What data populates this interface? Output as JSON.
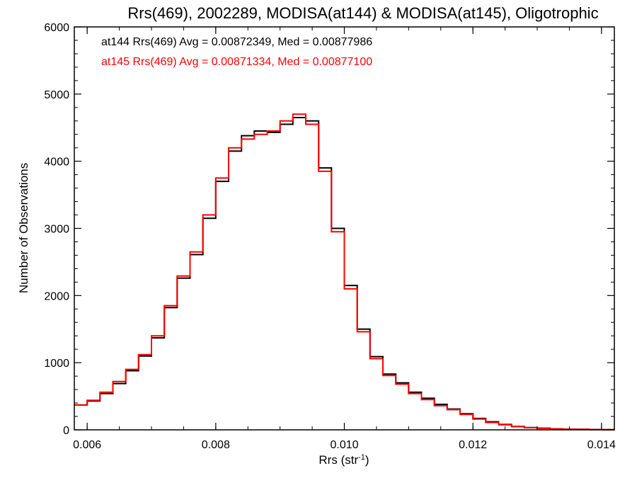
{
  "chart_data": {
    "type": "line",
    "title": "Rrs(469), 2002289, MODISA(at144) & MODISA(at145), Oligotrophic",
    "xlabel": "Rrs (str",
    "xlabel_sup": "-1",
    "xlabel_end": ")",
    "ylabel": "Number of Observations",
    "xlim": [
      0.0058,
      0.0142
    ],
    "ylim": [
      0,
      6000
    ],
    "x_ticks": [
      "0.006",
      "0.008",
      "0.010",
      "0.012",
      "0.014"
    ],
    "y_ticks": [
      "0",
      "1000",
      "2000",
      "3000",
      "4000",
      "5000",
      "6000"
    ],
    "grid": false,
    "line_style": "step",
    "annotations": [
      {
        "text": "at144 Rrs(469) Avg = 0.00872349, Med = 0.00877986",
        "color": "#000000"
      },
      {
        "text": "at145 Rrs(469) Avg = 0.00871334, Med = 0.00877100",
        "color": "#ff0000"
      }
    ],
    "series": [
      {
        "color": "#000000",
        "x": [
          0.0058,
          0.006,
          0.0062,
          0.0064,
          0.0066,
          0.0068,
          0.007,
          0.0072,
          0.0074,
          0.0076,
          0.0078,
          0.008,
          0.0082,
          0.0084,
          0.0086,
          0.0088,
          0.009,
          0.0092,
          0.0094,
          0.0096,
          0.0098,
          0.01,
          0.0102,
          0.0104,
          0.0106,
          0.0108,
          0.011,
          0.0112,
          0.0114,
          0.0116,
          0.0118,
          0.012,
          0.0122,
          0.0124,
          0.0126,
          0.0128,
          0.013,
          0.0132,
          0.0134,
          0.0136,
          0.0138,
          0.014,
          0.0142
        ],
        "values": [
          370,
          430,
          540,
          690,
          880,
          1100,
          1370,
          1820,
          2260,
          2610,
          3150,
          3700,
          4150,
          4380,
          4450,
          4430,
          4550,
          4650,
          4600,
          3900,
          3000,
          2150,
          1500,
          1090,
          830,
          700,
          560,
          470,
          380,
          310,
          240,
          170,
          120,
          80,
          50,
          35,
          25,
          15,
          10,
          8,
          5,
          3,
          2
        ]
      },
      {
        "color": "#ff0000",
        "x": [
          0.0058,
          0.006,
          0.0062,
          0.0064,
          0.0066,
          0.0068,
          0.007,
          0.0072,
          0.0074,
          0.0076,
          0.0078,
          0.008,
          0.0082,
          0.0084,
          0.0086,
          0.0088,
          0.009,
          0.0092,
          0.0094,
          0.0096,
          0.0098,
          0.01,
          0.0102,
          0.0104,
          0.0106,
          0.0108,
          0.011,
          0.0112,
          0.0114,
          0.0116,
          0.0118,
          0.012,
          0.0122,
          0.0124,
          0.0126,
          0.0128,
          0.013,
          0.0132,
          0.0134,
          0.0136,
          0.0138,
          0.014,
          0.0142
        ],
        "values": [
          370,
          440,
          560,
          720,
          900,
          1120,
          1400,
          1850,
          2290,
          2650,
          3200,
          3750,
          4200,
          4330,
          4400,
          4450,
          4600,
          4700,
          4550,
          3850,
          2950,
          2100,
          1460,
          1060,
          810,
          680,
          540,
          450,
          360,
          300,
          230,
          160,
          110,
          75,
          48,
          32,
          22,
          14,
          9,
          7,
          4,
          3,
          2
        ]
      }
    ]
  }
}
